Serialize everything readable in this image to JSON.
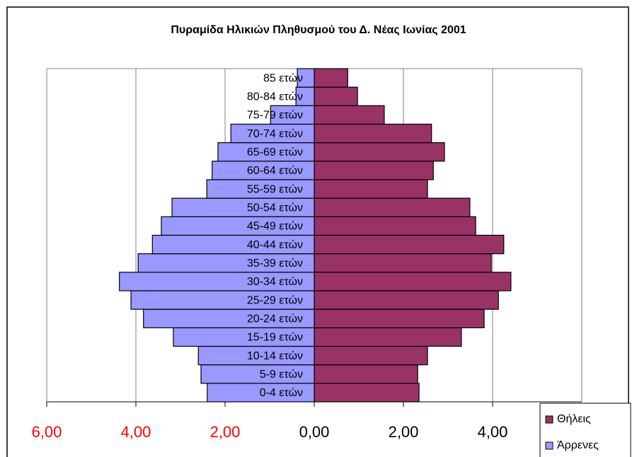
{
  "chart_data": {
    "type": "pyramid",
    "title": "Πυραμίδα Ηλικιών Πληθυσμού του Δ. Νέας Ιωνίας 2001",
    "categories": [
      "0-4 ετών",
      "5-9 ετών",
      "10-14 ετών",
      "15-19 ετών",
      "20-24 ετών",
      "25-29 ετών",
      "30-34 ετών",
      "35-39 ετών",
      "40-44 ετών",
      "45-49 ετών",
      "50-54 ετών",
      "55-59 ετών",
      "60-64 ετών",
      "65-69 ετών",
      "70-74 ετών",
      "75-79 ετών",
      "80-84 ετών",
      "85 ετών"
    ],
    "series": [
      {
        "name": "Θήλεις",
        "color": "#993366",
        "values": [
          2.35,
          2.32,
          2.54,
          3.3,
          3.81,
          4.13,
          4.41,
          3.97,
          4.25,
          3.62,
          3.49,
          2.54,
          2.67,
          2.92,
          2.63,
          1.57,
          0.97,
          0.75
        ]
      },
      {
        "name": "Άρρενες",
        "color": "#9999ff",
        "values": [
          -2.4,
          -2.54,
          -2.6,
          -3.16,
          -3.83,
          -4.11,
          -4.37,
          -3.95,
          -3.63,
          -3.43,
          -3.19,
          -2.41,
          -2.29,
          -2.16,
          -1.87,
          -0.98,
          -0.41,
          -0.38
        ]
      }
    ],
    "xlim": [
      -6,
      6
    ],
    "xticks": [
      {
        "value": -6,
        "label": "6,00"
      },
      {
        "value": -4,
        "label": "4,00"
      },
      {
        "value": -2,
        "label": "2,00"
      },
      {
        "value": 0,
        "label": "0,00"
      },
      {
        "value": 2,
        "label": "2,00"
      },
      {
        "value": 4,
        "label": "4,00"
      }
    ],
    "negative_tick_color": "#ff0000",
    "grid": true
  }
}
